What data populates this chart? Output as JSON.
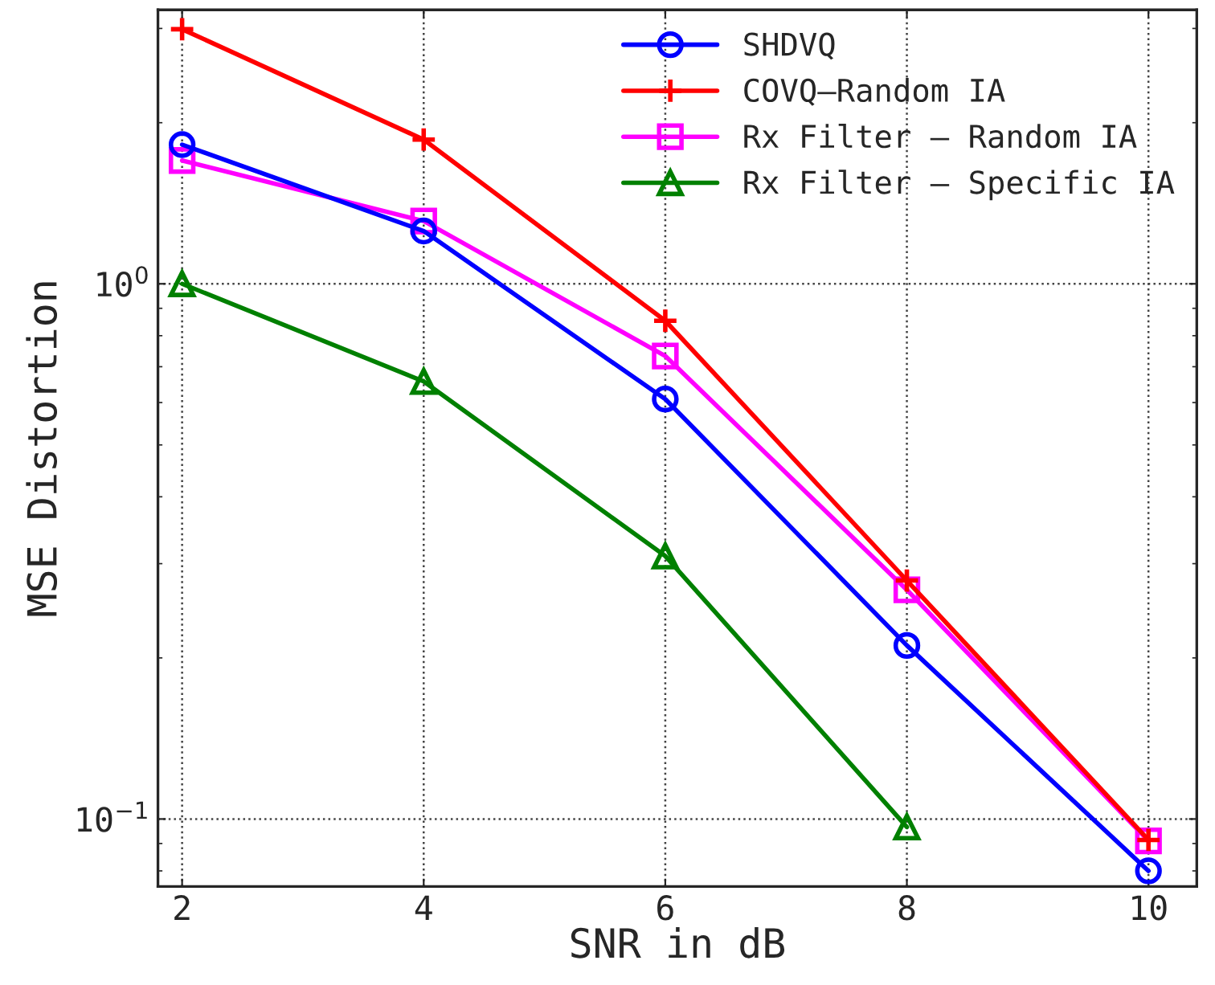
{
  "chart_data": {
    "type": "line",
    "xlabel": "SNR in dB",
    "ylabel": "MSE Distortion",
    "x": [
      2,
      4,
      6,
      8,
      10
    ],
    "series": [
      {
        "name": "SHDVQ",
        "color": "#0000ff",
        "marker": "circle",
        "values": [
          1.82,
          1.255,
          0.609,
          0.211,
          0.08
        ]
      },
      {
        "name": "COVQ–Random IA",
        "color": "#ff0000",
        "marker": "cross",
        "values": [
          2.99,
          1.86,
          0.853,
          0.279,
          0.0914
        ]
      },
      {
        "name": "Rx Filter – Random IA",
        "color": "#ff00ff",
        "marker": "square",
        "values": [
          1.7,
          1.31,
          0.733,
          0.268,
          0.091
        ]
      },
      {
        "name": "Rx Filter – Specific IA",
        "color": "#008000",
        "marker": "triangle",
        "values": [
          1.0,
          0.657,
          0.31,
          0.0966,
          null
        ]
      }
    ],
    "log": "y",
    "xlim": [
      1.8,
      10.4
    ],
    "ylim": [
      0.0748,
      3.25
    ],
    "xticks": [
      2,
      4,
      6,
      8,
      10
    ],
    "yticks": [
      {
        "value": 0.1,
        "label": "10$^{−1}$"
      },
      {
        "value": 1,
        "label": "10$^{0}$"
      }
    ],
    "grid": true,
    "legend": "top right",
    "line_style": "solid"
  }
}
